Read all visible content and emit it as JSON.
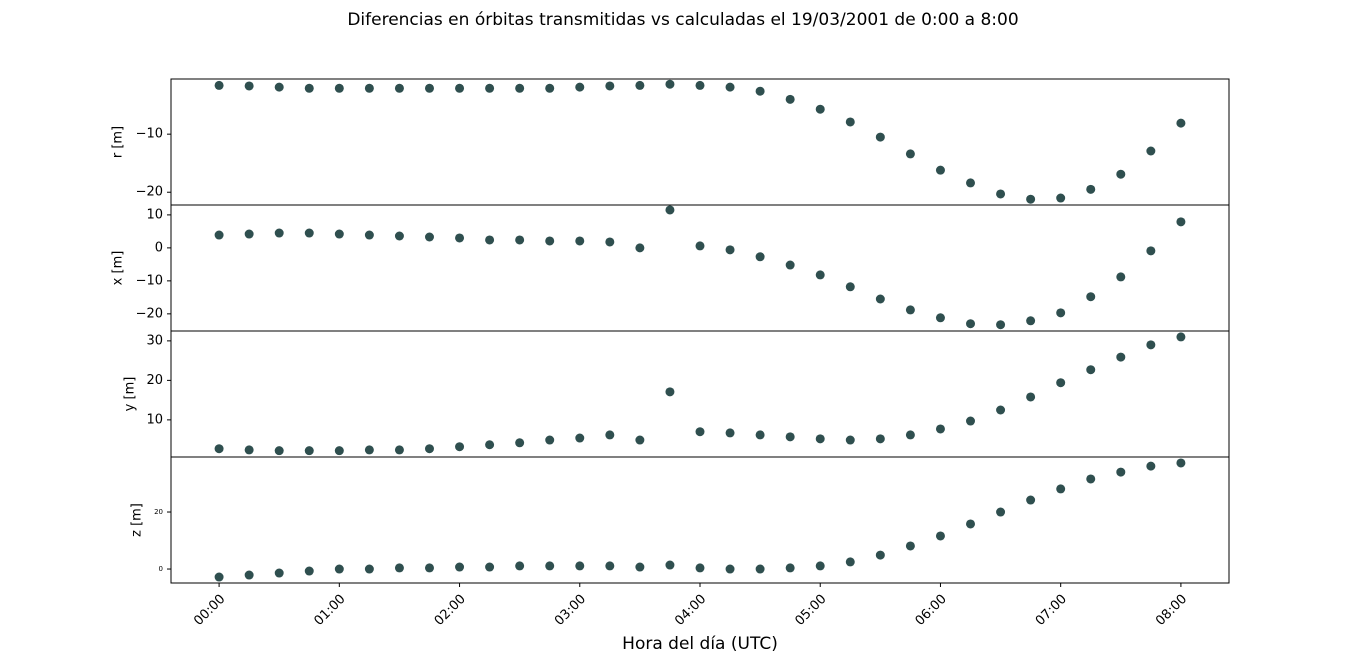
{
  "chart_data": {
    "type": "scatter",
    "title": "Diferencias en órbitas transmitidas vs calculadas el 19/03/2001 de 0:00 a 8:00",
    "xlabel": "Hora del día (UTC)",
    "color": "#2f4f4f",
    "x": [
      0,
      0.25,
      0.5,
      0.75,
      1,
      1.25,
      1.5,
      1.75,
      2,
      2.25,
      2.5,
      2.75,
      3,
      3.25,
      3.5,
      3.75,
      4,
      4.25,
      4.5,
      4.75,
      5,
      5.25,
      5.5,
      5.75,
      6,
      6.25,
      6.5,
      6.75,
      7,
      7.25,
      7.5,
      7.75,
      8
    ],
    "xlim": [
      -0.4,
      8.4
    ],
    "xticks": [
      {
        "value": 0,
        "label": "00:00"
      },
      {
        "value": 1,
        "label": "01:00"
      },
      {
        "value": 2,
        "label": "02:00"
      },
      {
        "value": 3,
        "label": "03:00"
      },
      {
        "value": 4,
        "label": "04:00"
      },
      {
        "value": 5,
        "label": "05:00"
      },
      {
        "value": 6,
        "label": "06:00"
      },
      {
        "value": 7,
        "label": "07:00"
      },
      {
        "value": 8,
        "label": "08:00"
      }
    ],
    "panels": [
      {
        "ylabel": "r [m]",
        "ylim": [
          -22.2,
          -0.5
        ],
        "yticks": [
          {
            "value": -10,
            "label": "−10"
          },
          {
            "value": -20,
            "label": "−20"
          }
        ],
        "values": [
          -1.6,
          -1.7,
          -1.9,
          -2.1,
          -2.1,
          -2.1,
          -2.1,
          -2.1,
          -2.1,
          -2.1,
          -2.1,
          -2.1,
          -1.9,
          -1.7,
          -1.6,
          -1.4,
          -1.6,
          -1.9,
          -2.6,
          -4.0,
          -5.7,
          -7.9,
          -10.5,
          -13.4,
          -16.2,
          -18.4,
          -20.3,
          -21.2,
          -21.0,
          -19.5,
          -16.9,
          -12.9,
          -8.1
        ]
      },
      {
        "ylabel": "x [m]",
        "ylim": [
          -25.2,
          13.0
        ],
        "yticks": [
          10,
          0,
          {
            "value": -10,
            "label": "−10"
          },
          {
            "value": -20,
            "label": "−20"
          }
        ],
        "values": [
          3.9,
          4.2,
          4.5,
          4.5,
          4.2,
          3.9,
          3.6,
          3.3,
          3.0,
          2.4,
          2.4,
          2.1,
          2.1,
          1.8,
          0,
          11.5,
          0.6,
          -0.6,
          -2.7,
          -5.2,
          -8.2,
          -11.8,
          -15.5,
          -18.8,
          -21.2,
          -23.0,
          -23.3,
          -22.1,
          -19.7,
          -14.8,
          -8.8,
          -0.9,
          7.9
        ]
      },
      {
        "ylabel": "y [m]",
        "ylim": [
          0.6,
          32.5
        ],
        "yticks": [
          30,
          20,
          10
        ],
        "values": [
          2.7,
          2.4,
          2.2,
          2.2,
          2.2,
          2.4,
          2.4,
          2.7,
          3.2,
          3.7,
          4.2,
          4.9,
          5.4,
          6.2,
          4.9,
          17.1,
          7.0,
          6.7,
          6.2,
          5.7,
          5.2,
          4.9,
          5.2,
          6.2,
          7.7,
          9.7,
          12.5,
          15.8,
          19.4,
          22.7,
          25.9,
          29.0,
          31.0
        ]
      },
      {
        "ylabel": "z [m]",
        "ylim": [
          -4.9,
          39.3
        ],
        "yticks": [
          20,
          0
        ],
        "values": [
          -2.8,
          -2.1,
          -1.4,
          -0.7,
          0,
          0,
          0.4,
          0.4,
          0.7,
          0.7,
          1.1,
          1.1,
          1.1,
          1.1,
          0.7,
          1.4,
          0.4,
          0,
          0,
          0.4,
          1.1,
          2.5,
          4.9,
          8.1,
          11.6,
          15.8,
          20,
          24.2,
          28.1,
          31.6,
          34.0,
          36.1,
          37.2
        ]
      }
    ]
  }
}
